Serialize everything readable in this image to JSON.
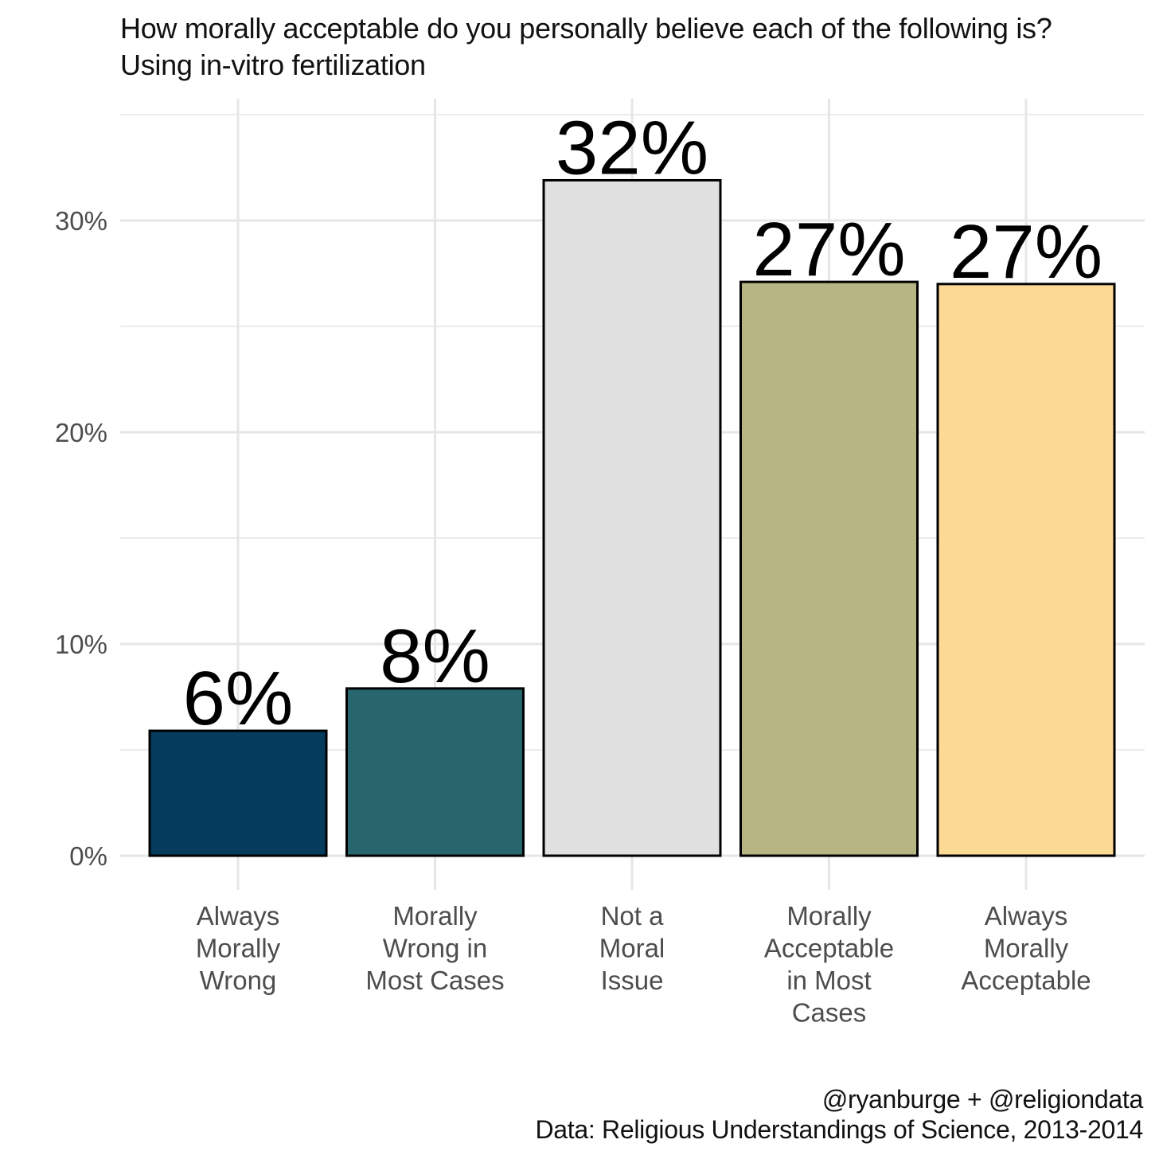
{
  "chart_data": {
    "type": "bar",
    "title": "How morally acceptable do you personally believe each of the following is?",
    "subtitle": "Using in-vitro fertilization",
    "categories": [
      [
        "Always",
        "Morally",
        "Wrong"
      ],
      [
        "Morally",
        "Wrong in",
        "Most Cases"
      ],
      [
        "Not a",
        "Moral",
        "Issue"
      ],
      [
        "Morally",
        "Acceptable",
        "in Most",
        "Cases"
      ],
      [
        "Always",
        "Morally",
        "Acceptable"
      ]
    ],
    "values": [
      5.9,
      7.9,
      31.9,
      27.1,
      27.0
    ],
    "data_labels": [
      "6%",
      "8%",
      "32%",
      "27%",
      "27%"
    ],
    "colors": [
      "#053c5e",
      "#28666e",
      "#e0e0e0",
      "#b7b584",
      "#fcd994"
    ],
    "ylim": [
      0,
      35
    ],
    "yticks": [
      0,
      10,
      20,
      30
    ],
    "ytick_labels": [
      "0%",
      "10%",
      "20%",
      "30%"
    ],
    "grid": true,
    "xlabel": "",
    "ylabel": ""
  },
  "caption": {
    "line1": "@ryanburge + @religiondata",
    "line2": "Data: Religious Understandings of Science, 2013-2014"
  }
}
